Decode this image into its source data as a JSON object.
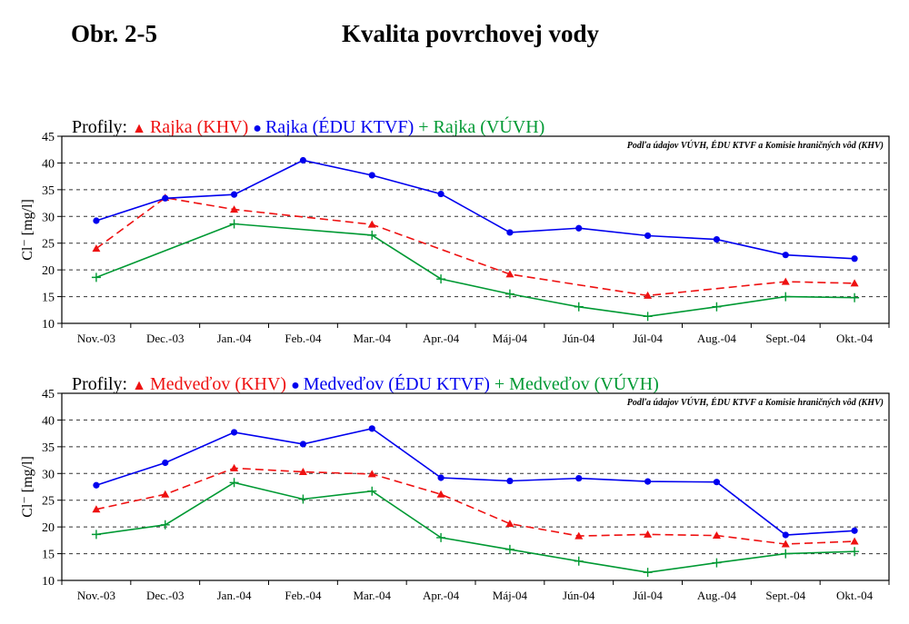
{
  "header": {
    "figure_label": "Obr. 2-5",
    "title": "Kvalita povrchovej vody"
  },
  "chart_data": [
    {
      "type": "line",
      "legend_prefix": "Profily:",
      "source_note": "Podľa údajov VÚVH, ÉDU KTVF a Komisie hraničných vôd (KHV)",
      "ylabel": "Cl⁻ [mg/l]",
      "ylim": [
        10,
        45
      ],
      "yticks": [
        10,
        15,
        20,
        25,
        30,
        35,
        40,
        45
      ],
      "grid": true,
      "legend_position": "top",
      "categories": [
        "Nov.-03",
        "Dec.-03",
        "Jan.-04",
        "Feb.-04",
        "Mar.-04",
        "Apr.-04",
        "Máj-04",
        "Jún-04",
        "Júl-04",
        "Aug.-04",
        "Sept.-04",
        "Okt.-04"
      ],
      "series": [
        {
          "name": "Rajka (KHV)",
          "color": "#ee1111",
          "marker": "triangle",
          "dashed": true,
          "values": [
            24.0,
            33.5,
            31.3,
            null,
            28.5,
            null,
            19.2,
            null,
            15.2,
            null,
            17.8,
            17.5
          ]
        },
        {
          "name": "Rajka (ÉDU KTVF)",
          "color": "#0000ee",
          "marker": "circle",
          "dashed": false,
          "values": [
            29.2,
            33.4,
            34.1,
            40.5,
            37.7,
            34.2,
            27.0,
            27.8,
            26.4,
            25.7,
            22.8,
            22.1
          ]
        },
        {
          "name": "Rajka (VÚVH)",
          "color": "#009933",
          "marker": "plus",
          "dashed": false,
          "values": [
            18.6,
            null,
            28.6,
            null,
            26.5,
            18.3,
            15.5,
            13.1,
            11.3,
            13.1,
            15.0,
            14.8
          ]
        }
      ]
    },
    {
      "type": "line",
      "legend_prefix": "Profily:",
      "source_note": "Podľa údajov VÚVH, ÉDU KTVF a Komisie hraničných vôd (KHV)",
      "ylabel": "Cl⁻ [mg/l]",
      "ylim": [
        10,
        45
      ],
      "yticks": [
        10,
        15,
        20,
        25,
        30,
        35,
        40,
        45
      ],
      "grid": true,
      "legend_position": "top",
      "categories": [
        "Nov.-03",
        "Dec.-03",
        "Jan.-04",
        "Feb.-04",
        "Mar.-04",
        "Apr.-04",
        "Máj-04",
        "Jún-04",
        "Júl-04",
        "Aug.-04",
        "Sept.-04",
        "Okt.-04"
      ],
      "series": [
        {
          "name": "Medveďov (KHV)",
          "color": "#ee1111",
          "marker": "triangle",
          "dashed": true,
          "values": [
            23.3,
            26.1,
            31.0,
            30.3,
            29.9,
            26.1,
            20.6,
            18.3,
            18.6,
            18.4,
            16.8,
            17.3
          ]
        },
        {
          "name": "Medveďov (ÉDU KTVF)",
          "color": "#0000ee",
          "marker": "circle",
          "dashed": false,
          "values": [
            27.8,
            32.0,
            37.7,
            35.5,
            38.4,
            29.2,
            28.6,
            29.1,
            28.5,
            28.4,
            18.5,
            19.3
          ]
        },
        {
          "name": "Medveďov (VÚVH)",
          "color": "#009933",
          "marker": "plus",
          "dashed": false,
          "values": [
            18.6,
            20.4,
            28.3,
            25.2,
            26.7,
            18.0,
            15.8,
            13.6,
            11.5,
            13.3,
            15.0,
            15.4
          ]
        }
      ]
    }
  ]
}
